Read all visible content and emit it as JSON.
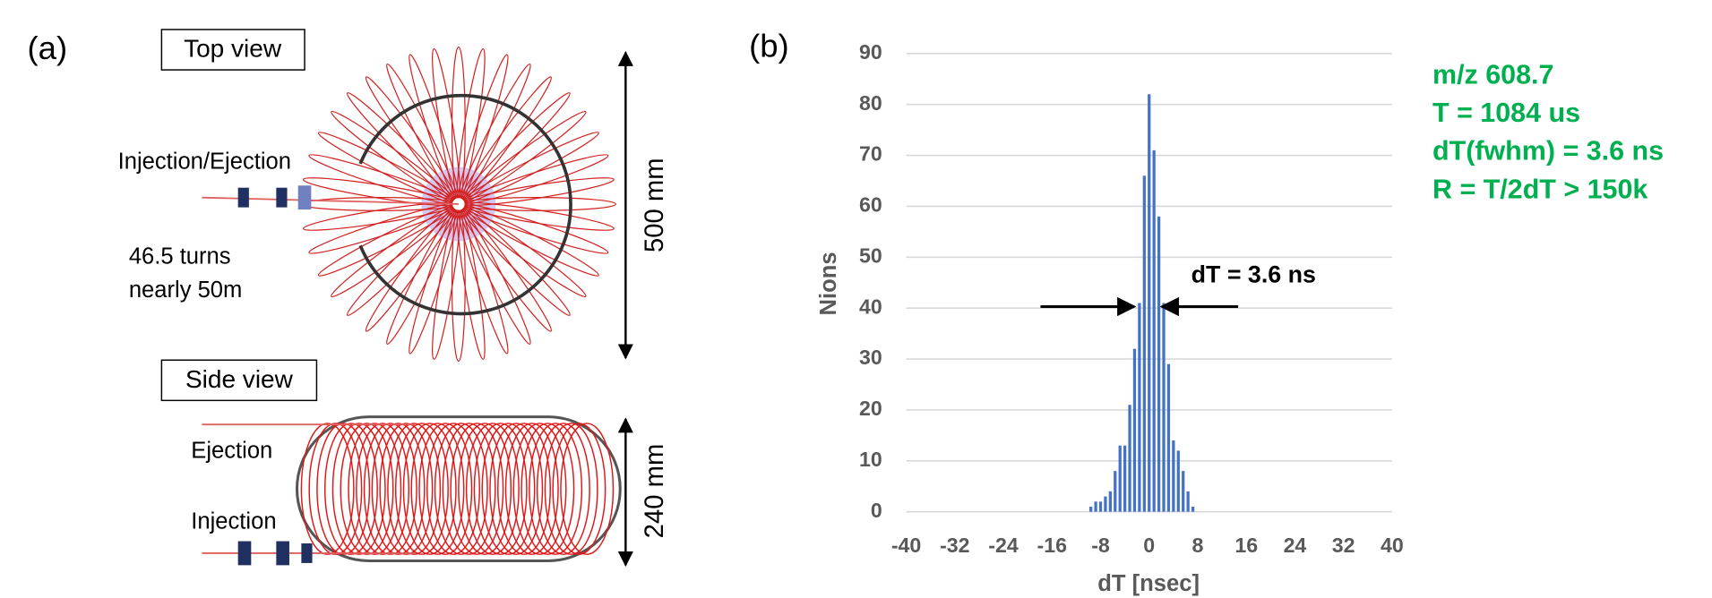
{
  "diagram": {
    "panel_label": "(a)",
    "top_view": "Top view",
    "side_view": "Side view",
    "injection_ejection": "Injection/Ejection",
    "turns": "46.5 turns",
    "length": "nearly 50m",
    "ejection": "Ejection",
    "injection": "Injection",
    "top_size": "500 mm",
    "side_size": "240 mm"
  },
  "chart_data": {
    "type": "histogram",
    "panel_label": "(b)",
    "xlabel": "dT [nsec]",
    "ylabel": "Nions",
    "bins": [
      -10,
      -9.2,
      -8.4,
      -7.6,
      -6.8,
      -6,
      -5.2,
      -4.4,
      -3.6,
      -2.8,
      -2,
      -1.2,
      -0.4,
      0.4,
      1.2,
      2,
      2.8,
      3.6,
      4.4,
      5.2,
      6,
      6.8,
      7.6
    ],
    "values": [
      1,
      2,
      2,
      3,
      4,
      8,
      13,
      13,
      21,
      32,
      41,
      66,
      82,
      71,
      58,
      41,
      29,
      14,
      12,
      8,
      4,
      1
    ],
    "color": "#4472c4",
    "xlim": [
      -40,
      40
    ],
    "xticks": [
      -40,
      -32,
      -24,
      -16,
      -8,
      0,
      8,
      16,
      24,
      32,
      40
    ],
    "ylim": [
      0,
      90
    ],
    "yticks": [
      0,
      10,
      20,
      30,
      40,
      50,
      60,
      70,
      80,
      90
    ],
    "grid": true,
    "annotation": "dT = 3.6 ns",
    "info": [
      "m/z 608.7",
      "T = 1084 us",
      "dT(fwhm) = 3.6 ns",
      "R = T/2dT > 150k"
    ],
    "info_color": "#00b050"
  }
}
